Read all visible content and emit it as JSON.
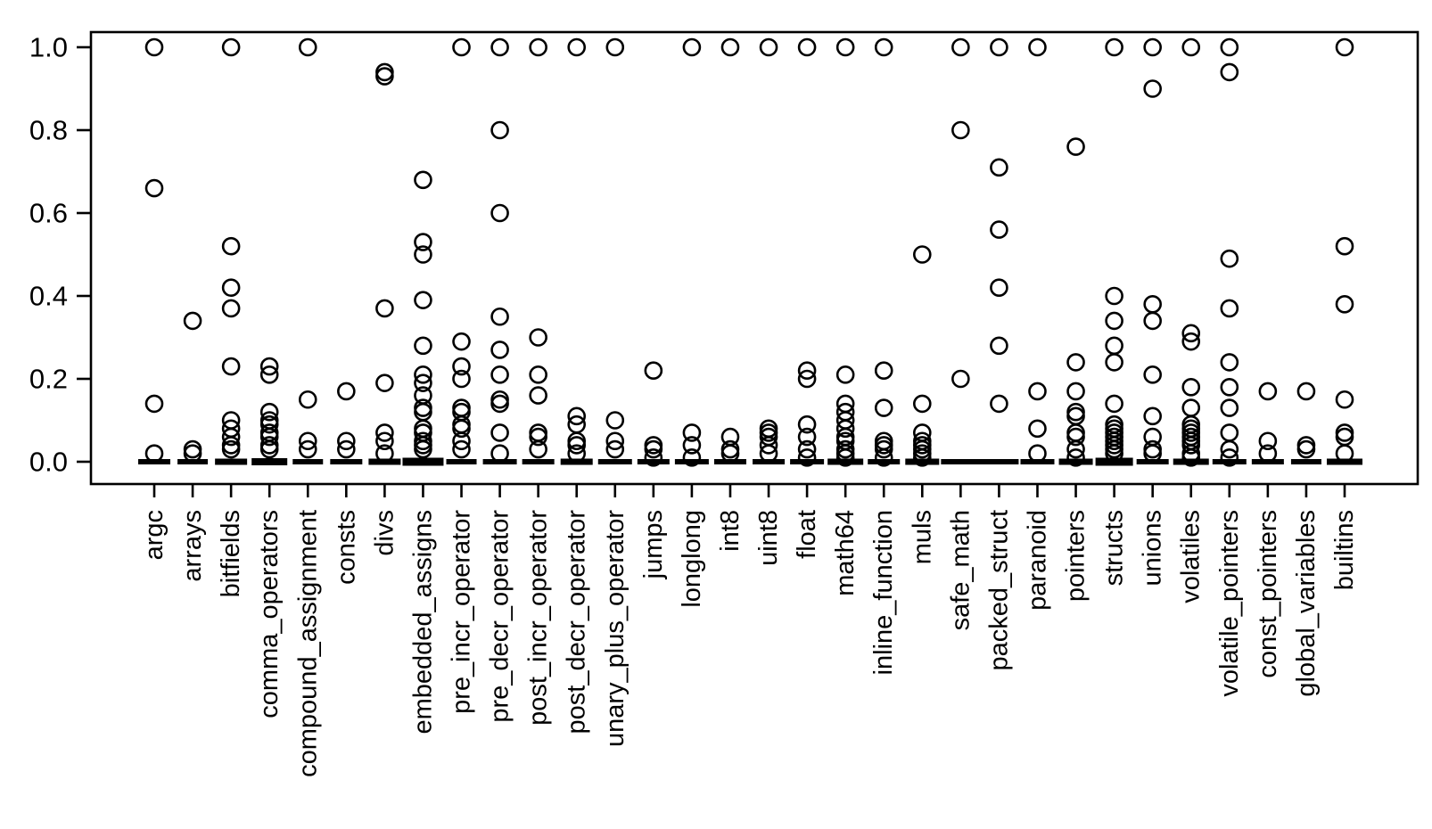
{
  "figure": {
    "background": "#ffffff",
    "stroke_color": "#000000"
  },
  "chart_data": {
    "type": "scatter",
    "subtype": "stripchart-dotplot",
    "title": "",
    "xlabel": "",
    "ylabel": "",
    "ylim": [
      0,
      1
    ],
    "grid": false,
    "legend": null,
    "marker": "open-circle",
    "y_ticks": [
      {
        "v": 0.0,
        "label": "0.0"
      },
      {
        "v": 0.2,
        "label": "0.2"
      },
      {
        "v": 0.4,
        "label": "0.4"
      },
      {
        "v": 0.6,
        "label": "0.6"
      },
      {
        "v": 0.8,
        "label": "0.8"
      },
      {
        "v": 1.0,
        "label": "1.0"
      }
    ],
    "categories": [
      "argc",
      "arrays",
      "bitfields",
      "comma_operators",
      "compound_assignment",
      "consts",
      "divs",
      "embedded_assigns",
      "pre_incr_operator",
      "pre_decr_operator",
      "post_incr_operator",
      "post_decr_operator",
      "unary_plus_operator",
      "jumps",
      "longlong",
      "int8",
      "uint8",
      "float",
      "math64",
      "inline_function",
      "muls",
      "safe_math",
      "packed_struct",
      "paranoid",
      "pointers",
      "structs",
      "unions",
      "volatiles",
      "volatile_pointers",
      "const_pointers",
      "global_variables",
      "builtins"
    ],
    "series": [
      {
        "category": "argc",
        "points": [
          1.0,
          0.66,
          0.14,
          0.02
        ],
        "zero_cluster": true,
        "dash_w": 36,
        "dash_h": 6
      },
      {
        "category": "arrays",
        "points": [
          0.34,
          0.03,
          0.02
        ],
        "zero_cluster": true,
        "dash_w": 34,
        "dash_h": 6
      },
      {
        "category": "bitfields",
        "points": [
          1.0,
          0.52,
          0.42,
          0.37,
          0.23,
          0.1,
          0.08,
          0.06,
          0.04,
          0.03
        ],
        "zero_cluster": true,
        "dash_w": 36,
        "dash_h": 7
      },
      {
        "category": "comma_operators",
        "points": [
          0.23,
          0.21,
          0.12,
          0.1,
          0.09,
          0.07,
          0.06,
          0.04,
          0.03
        ],
        "zero_cluster": true,
        "dash_w": 40,
        "dash_h": 8
      },
      {
        "category": "compound_assignment",
        "points": [
          1.0,
          0.15,
          0.05,
          0.03
        ],
        "zero_cluster": true,
        "dash_w": 34,
        "dash_h": 6
      },
      {
        "category": "consts",
        "points": [
          0.17,
          0.05,
          0.03
        ],
        "zero_cluster": true,
        "dash_w": 36,
        "dash_h": 6
      },
      {
        "category": "divs",
        "points": [
          0.94,
          0.93,
          0.37,
          0.19,
          0.07,
          0.05,
          0.02
        ],
        "zero_cluster": true,
        "dash_w": 36,
        "dash_h": 7
      },
      {
        "category": "embedded_assigns",
        "points": [
          0.68,
          0.53,
          0.5,
          0.39,
          0.28,
          0.21,
          0.19,
          0.16,
          0.13,
          0.12,
          0.08,
          0.07,
          0.05,
          0.04,
          0.03
        ],
        "zero_cluster": true,
        "dash_w": 46,
        "dash_h": 9
      },
      {
        "category": "pre_incr_operator",
        "points": [
          1.0,
          0.29,
          0.23,
          0.2,
          0.13,
          0.12,
          0.09,
          0.08,
          0.05,
          0.03
        ],
        "zero_cluster": true,
        "dash_w": 34,
        "dash_h": 6
      },
      {
        "category": "pre_decr_operator",
        "points": [
          1.0,
          0.8,
          0.6,
          0.35,
          0.27,
          0.21,
          0.15,
          0.14,
          0.07,
          0.02
        ],
        "zero_cluster": true,
        "dash_w": 38,
        "dash_h": 6
      },
      {
        "category": "post_incr_operator",
        "points": [
          1.0,
          0.3,
          0.21,
          0.16,
          0.07,
          0.06,
          0.03
        ],
        "zero_cluster": true,
        "dash_w": 36,
        "dash_h": 6
      },
      {
        "category": "post_decr_operator",
        "points": [
          1.0,
          0.11,
          0.09,
          0.05,
          0.04,
          0.02
        ],
        "zero_cluster": true,
        "dash_w": 36,
        "dash_h": 7
      },
      {
        "category": "unary_plus_operator",
        "points": [
          1.0,
          0.1,
          0.05,
          0.03
        ],
        "zero_cluster": true,
        "dash_w": 38,
        "dash_h": 6
      },
      {
        "category": "jumps",
        "points": [
          0.22,
          0.04,
          0.03,
          0.01
        ],
        "zero_cluster": true,
        "dash_w": 36,
        "dash_h": 6
      },
      {
        "category": "longlong",
        "points": [
          1.0,
          0.07,
          0.04,
          0.01
        ],
        "zero_cluster": true,
        "dash_w": 38,
        "dash_h": 6
      },
      {
        "category": "int8",
        "points": [
          1.0,
          0.06,
          0.03,
          0.02
        ],
        "zero_cluster": true,
        "dash_w": 36,
        "dash_h": 6
      },
      {
        "category": "uint8",
        "points": [
          1.0,
          0.08,
          0.07,
          0.06,
          0.04,
          0.02
        ],
        "zero_cluster": true,
        "dash_w": 36,
        "dash_h": 6
      },
      {
        "category": "float",
        "points": [
          1.0,
          0.22,
          0.2,
          0.09,
          0.06,
          0.03,
          0.01
        ],
        "zero_cluster": true,
        "dash_w": 38,
        "dash_h": 6
      },
      {
        "category": "math64",
        "points": [
          1.0,
          0.21,
          0.14,
          0.12,
          0.1,
          0.08,
          0.06,
          0.05,
          0.03,
          0.02,
          0.01
        ],
        "zero_cluster": true,
        "dash_w": 40,
        "dash_h": 7
      },
      {
        "category": "inline_function",
        "points": [
          1.0,
          0.22,
          0.13,
          0.05,
          0.04,
          0.03,
          0.01
        ],
        "zero_cluster": true,
        "dash_w": 36,
        "dash_h": 6
      },
      {
        "category": "muls",
        "points": [
          0.5,
          0.14,
          0.07,
          0.05,
          0.04,
          0.03,
          0.02,
          0.01
        ],
        "zero_cluster": true,
        "dash_w": 38,
        "dash_h": 7
      },
      {
        "category": "safe_math",
        "points": [
          1.0,
          0.8,
          0.2
        ],
        "zero_cluster": true,
        "dash_w": 44,
        "dash_h": 6
      },
      {
        "category": "packed_struct",
        "points": [
          1.0,
          0.71,
          0.56,
          0.42,
          0.28,
          0.14
        ],
        "zero_cluster": true,
        "dash_w": 44,
        "dash_h": 6
      },
      {
        "category": "paranoid",
        "points": [
          1.0,
          0.17,
          0.08,
          0.02
        ],
        "zero_cluster": true,
        "dash_w": 38,
        "dash_h": 6
      },
      {
        "category": "pointers",
        "points": [
          0.76,
          0.24,
          0.17,
          0.12,
          0.11,
          0.07,
          0.06,
          0.03,
          0.01
        ],
        "zero_cluster": true,
        "dash_w": 38,
        "dash_h": 7
      },
      {
        "category": "structs",
        "points": [
          1.0,
          0.4,
          0.34,
          0.28,
          0.24,
          0.14,
          0.09,
          0.08,
          0.07,
          0.06,
          0.05,
          0.04,
          0.03,
          0.02
        ],
        "zero_cluster": true,
        "dash_w": 42,
        "dash_h": 9
      },
      {
        "category": "unions",
        "points": [
          1.0,
          0.9,
          0.38,
          0.34,
          0.21,
          0.11,
          0.06,
          0.03,
          0.02
        ],
        "zero_cluster": true,
        "dash_w": 36,
        "dash_h": 6
      },
      {
        "category": "volatiles",
        "points": [
          1.0,
          0.31,
          0.29,
          0.18,
          0.13,
          0.09,
          0.08,
          0.07,
          0.06,
          0.05,
          0.04,
          0.02,
          0.01
        ],
        "zero_cluster": true,
        "dash_w": 40,
        "dash_h": 7
      },
      {
        "category": "volatile_pointers",
        "points": [
          1.0,
          0.94,
          0.49,
          0.37,
          0.24,
          0.18,
          0.13,
          0.07,
          0.03,
          0.01
        ],
        "zero_cluster": true,
        "dash_w": 38,
        "dash_h": 6
      },
      {
        "category": "const_pointers",
        "points": [
          0.17,
          0.05,
          0.02
        ],
        "zero_cluster": true,
        "dash_w": 36,
        "dash_h": 6
      },
      {
        "category": "global_variables",
        "points": [
          0.17,
          0.04,
          0.03
        ],
        "zero_cluster": true,
        "dash_w": 34,
        "dash_h": 6
      },
      {
        "category": "builtins",
        "points": [
          1.0,
          0.52,
          0.38,
          0.15,
          0.07,
          0.06,
          0.02
        ],
        "zero_cluster": true,
        "dash_w": 40,
        "dash_h": 7
      }
    ]
  }
}
